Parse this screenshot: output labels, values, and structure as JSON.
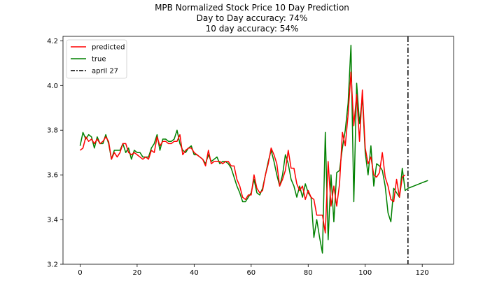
{
  "chart_data": {
    "type": "line",
    "title": "MPB Normalized Stock Price 10 Day Prediction",
    "subtitle_lines": [
      "Day to Day accuracy: 74%",
      "10 day accuracy: 54%"
    ],
    "xlabel": "",
    "ylabel": "",
    "xlim": [
      -6,
      131
    ],
    "ylim": [
      3.2,
      4.22
    ],
    "x_ticks": [
      0,
      20,
      40,
      60,
      80,
      100,
      120
    ],
    "y_ticks": [
      3.2,
      3.4,
      3.6,
      3.8,
      4.0,
      4.2
    ],
    "x_tick_labels": [
      "0",
      "20",
      "40",
      "60",
      "80",
      "100",
      "120"
    ],
    "y_tick_labels": [
      "3.2",
      "3.4",
      "3.6",
      "3.8",
      "4.0",
      "4.2"
    ],
    "grid": false,
    "legend_position": "upper-left",
    "legend": [
      {
        "label": "predicted",
        "color": "#ff0000",
        "style": "solid"
      },
      {
        "label": "true",
        "color": "#008000",
        "style": "solid"
      },
      {
        "label": "april 27",
        "color": "#000000",
        "style": "dashdot"
      }
    ],
    "series": [
      {
        "name": "true",
        "color": "#008000",
        "x_start": 0,
        "values": [
          3.73,
          3.79,
          3.76,
          3.78,
          3.77,
          3.72,
          3.77,
          3.74,
          3.74,
          3.78,
          3.74,
          3.67,
          3.71,
          3.71,
          3.71,
          3.74,
          3.7,
          3.72,
          3.67,
          3.71,
          3.7,
          3.7,
          3.68,
          3.68,
          3.68,
          3.72,
          3.74,
          3.78,
          3.71,
          3.76,
          3.76,
          3.75,
          3.75,
          3.76,
          3.8,
          3.74,
          3.71,
          3.7,
          3.72,
          3.73,
          3.69,
          3.69,
          3.68,
          3.67,
          3.65,
          3.69,
          3.66,
          3.67,
          3.68,
          3.65,
          3.66,
          3.66,
          3.65,
          3.63,
          3.59,
          3.55,
          3.52,
          3.48,
          3.48,
          3.5,
          3.52,
          3.58,
          3.52,
          3.51,
          3.54,
          3.6,
          3.66,
          3.71,
          3.66,
          3.6,
          3.55,
          3.6,
          3.69,
          3.65,
          3.58,
          3.55,
          3.5,
          3.55,
          3.5,
          3.56,
          3.52,
          3.5,
          3.32,
          3.4,
          3.32,
          3.25,
          3.79,
          3.31,
          3.6,
          3.39,
          3.61,
          3.62,
          3.72,
          3.8,
          3.92,
          4.18,
          3.48,
          4.01,
          3.83,
          3.95,
          3.7,
          3.6,
          3.73,
          3.55,
          3.65,
          3.64,
          3.62,
          3.55,
          3.43,
          3.39,
          3.54,
          3.52,
          3.5,
          3.63,
          3.53,
          3.54,
          3.545,
          3.55,
          3.555,
          3.56,
          3.565,
          3.57,
          3.575
        ]
      },
      {
        "name": "predicted",
        "color": "#ff0000",
        "x_start": 0,
        "values": [
          3.71,
          3.72,
          3.77,
          3.75,
          3.76,
          3.74,
          3.76,
          3.74,
          3.75,
          3.77,
          3.75,
          3.67,
          3.7,
          3.68,
          3.7,
          3.74,
          3.74,
          3.7,
          3.69,
          3.7,
          3.69,
          3.68,
          3.67,
          3.68,
          3.67,
          3.71,
          3.7,
          3.77,
          3.73,
          3.75,
          3.75,
          3.74,
          3.74,
          3.75,
          3.75,
          3.78,
          3.69,
          3.71,
          3.72,
          3.72,
          3.7,
          3.69,
          3.68,
          3.67,
          3.64,
          3.71,
          3.65,
          3.66,
          3.66,
          3.66,
          3.65,
          3.66,
          3.66,
          3.64,
          3.64,
          3.58,
          3.55,
          3.5,
          3.49,
          3.51,
          3.51,
          3.6,
          3.54,
          3.52,
          3.53,
          3.6,
          3.65,
          3.72,
          3.69,
          3.65,
          3.55,
          3.58,
          3.62,
          3.71,
          3.63,
          3.63,
          3.56,
          3.53,
          3.55,
          3.49,
          3.53,
          3.5,
          3.49,
          3.42,
          3.42,
          3.42,
          3.34,
          3.66,
          3.46,
          3.55,
          3.46,
          3.56,
          3.79,
          3.73,
          3.87,
          4.06,
          3.82,
          3.96,
          3.75,
          3.98,
          3.72,
          3.65,
          3.68,
          3.6,
          3.59,
          3.61,
          3.7,
          3.59,
          3.55,
          3.49,
          3.48,
          3.58,
          3.5,
          3.59,
          3.6
        ]
      }
    ],
    "vline": {
      "x": 115,
      "label": "april 27",
      "color": "#000000",
      "style": "dashdot"
    }
  }
}
